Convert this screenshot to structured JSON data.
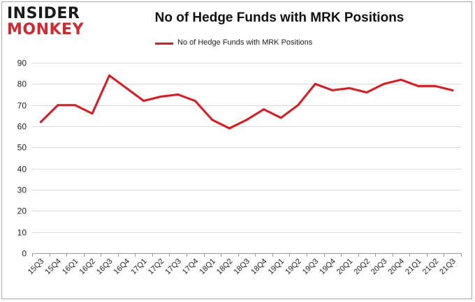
{
  "logo": {
    "top_text": "INSIDER",
    "bottom_text": "MONKEY"
  },
  "colors": {
    "series": "#e8141a",
    "grid": "#d9d9d9",
    "axis": "#333333",
    "logo_red": "#d9262c"
  },
  "chart_data": {
    "type": "line",
    "title": "No of Hedge Funds with MRK Positions",
    "xlabel": "",
    "ylabel": "",
    "ylim": [
      0,
      90
    ],
    "yticks": [
      0,
      10,
      20,
      30,
      40,
      50,
      60,
      70,
      80,
      90
    ],
    "grid": true,
    "legend_position": "top-center",
    "categories": [
      "15Q3",
      "15Q4",
      "16Q1",
      "16Q2",
      "16Q3",
      "16Q4",
      "17Q1",
      "17Q2",
      "17Q3",
      "17Q4",
      "18Q1",
      "18Q2",
      "18Q3",
      "18Q4",
      "19Q1",
      "19Q2",
      "19Q3",
      "19Q4",
      "20Q1",
      "20Q2",
      "20Q3",
      "20Q4",
      "21Q1",
      "21Q2",
      "21Q3"
    ],
    "series": [
      {
        "name": "No of Hedge Funds with MRK Positions",
        "values": [
          62,
          70,
          70,
          66,
          84,
          78,
          72,
          74,
          75,
          72,
          63,
          59,
          63,
          68,
          64,
          70,
          80,
          77,
          78,
          76,
          80,
          82,
          79,
          79,
          77
        ]
      }
    ]
  }
}
